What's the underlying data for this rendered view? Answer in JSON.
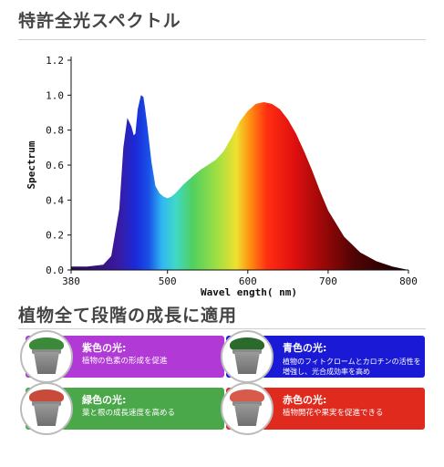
{
  "headings": {
    "top": "特許全光スペクトル",
    "bottom": "植物全て段階の成長に適用"
  },
  "chart_data": {
    "type": "area",
    "xlabel": "Wavel ength( nm)",
    "ylabel": "Spectrum",
    "xlim": [
      380,
      800
    ],
    "ylim": [
      0,
      1.2
    ],
    "xticks": [
      "380",
      "500",
      "600",
      "700",
      "800"
    ],
    "xtick_values": [
      380,
      500,
      600,
      700,
      800
    ],
    "yticks": [
      "0.0",
      "0.2",
      "0.4",
      "0.6",
      "0.8",
      "1.0",
      "1.2"
    ],
    "ytick_values": [
      0,
      0.2,
      0.4,
      0.6,
      0.8,
      1.0,
      1.2
    ],
    "fill": "visible-spectrum gradient (violet→blue→cyan→green→yellow→red→dark red)",
    "grid": false,
    "x": [
      380,
      400,
      420,
      430,
      440,
      445,
      450,
      455,
      458,
      460,
      463,
      467,
      470,
      472,
      475,
      480,
      485,
      490,
      495,
      500,
      505,
      510,
      520,
      530,
      540,
      550,
      560,
      570,
      580,
      590,
      600,
      610,
      620,
      630,
      640,
      650,
      660,
      670,
      680,
      690,
      700,
      720,
      740,
      760,
      780,
      800
    ],
    "y": [
      0.02,
      0.02,
      0.03,
      0.08,
      0.35,
      0.7,
      0.87,
      0.82,
      0.77,
      0.78,
      0.92,
      1.0,
      0.99,
      0.93,
      0.82,
      0.62,
      0.48,
      0.44,
      0.42,
      0.41,
      0.42,
      0.44,
      0.49,
      0.53,
      0.57,
      0.6,
      0.63,
      0.68,
      0.76,
      0.85,
      0.91,
      0.95,
      0.96,
      0.95,
      0.92,
      0.86,
      0.78,
      0.68,
      0.57,
      0.45,
      0.34,
      0.19,
      0.1,
      0.05,
      0.02,
      0.0
    ]
  },
  "cards": [
    {
      "title": "紫色の光:",
      "desc": "植物の色素の形成を促進",
      "color": "#b13ad6"
    },
    {
      "title": "青色の光:",
      "desc": "植物のフィトクロームとカロチンの活性を増強し、光合成効率を高め",
      "color": "#1a1ad6"
    },
    {
      "title": "緑色の光:",
      "desc": "葉と根の成長速度を高める",
      "color": "#4aa84a"
    },
    {
      "title": "赤色の光:",
      "desc": "植物開花や果実を促進できる",
      "color": "#e02a1e"
    }
  ]
}
